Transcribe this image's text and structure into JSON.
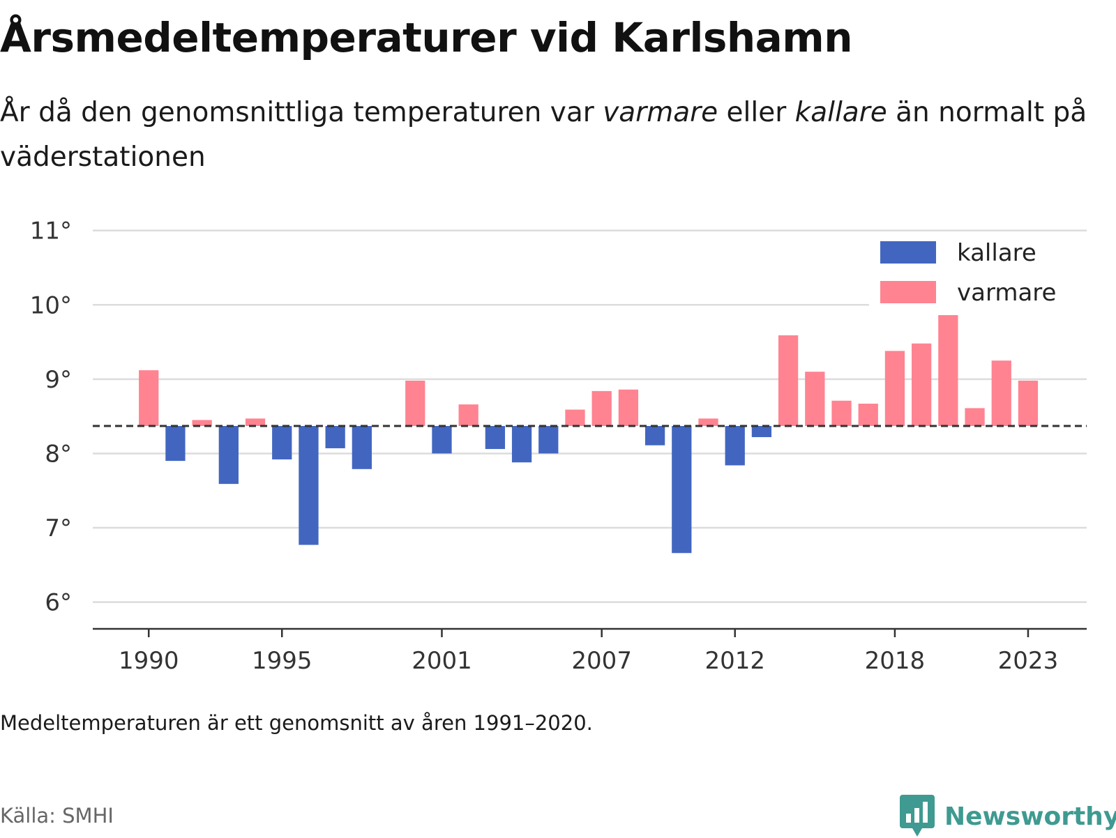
{
  "title": "Årsmedeltemperaturer vid Karlshamn",
  "subtitle": {
    "part1": "År då den genomsnittliga temperaturen var ",
    "warmer_word": "varmare",
    "part2": " eller ",
    "colder_word": "kallare",
    "part3": " än normalt på väderstationen"
  },
  "note": "Medeltemperaturen är ett genomsnitt av åren 1991–2020.",
  "source": "Källa: SMHI",
  "brand": {
    "name": "Newsworthy",
    "color": "#3f9a91"
  },
  "chart_data": {
    "type": "bar",
    "x": [
      1990,
      1991,
      1992,
      1993,
      1994,
      1995,
      1996,
      1997,
      1998,
      1999,
      2000,
      2001,
      2002,
      2003,
      2004,
      2005,
      2006,
      2007,
      2008,
      2009,
      2010,
      2011,
      2012,
      2013,
      2014,
      2015,
      2016,
      2017,
      2018,
      2019,
      2020,
      2021,
      2022,
      2023
    ],
    "values": [
      9.12,
      7.9,
      8.45,
      7.59,
      8.47,
      7.92,
      6.77,
      8.07,
      7.79,
      null,
      8.98,
      8.0,
      8.66,
      8.06,
      7.88,
      8.0,
      8.59,
      8.84,
      8.86,
      8.11,
      6.66,
      8.47,
      7.84,
      8.22,
      9.59,
      9.1,
      8.71,
      8.67,
      9.38,
      9.48,
      9.9,
      8.61,
      9.25,
      8.98
    ],
    "baseline": 8.37,
    "baseline_label": "",
    "x_tick_labels": [
      "1990",
      "1995",
      "2001",
      "2007",
      "2012",
      "2018",
      "2023"
    ],
    "y_ticks": [
      6,
      7,
      8,
      9,
      10,
      11
    ],
    "y_tick_labels": [
      "6°",
      "7°",
      "8°",
      "9°",
      "10°",
      "11°"
    ],
    "ylim": [
      5.64,
      11.1
    ],
    "xlim": [
      1987.9,
      2025.2
    ],
    "xlabel": "",
    "ylabel": "",
    "grid": true,
    "legend_position": "top-right",
    "series": [
      {
        "name": "kallare",
        "color": "#4266c0"
      },
      {
        "name": "varmare",
        "color": "#ff8391"
      }
    ]
  }
}
